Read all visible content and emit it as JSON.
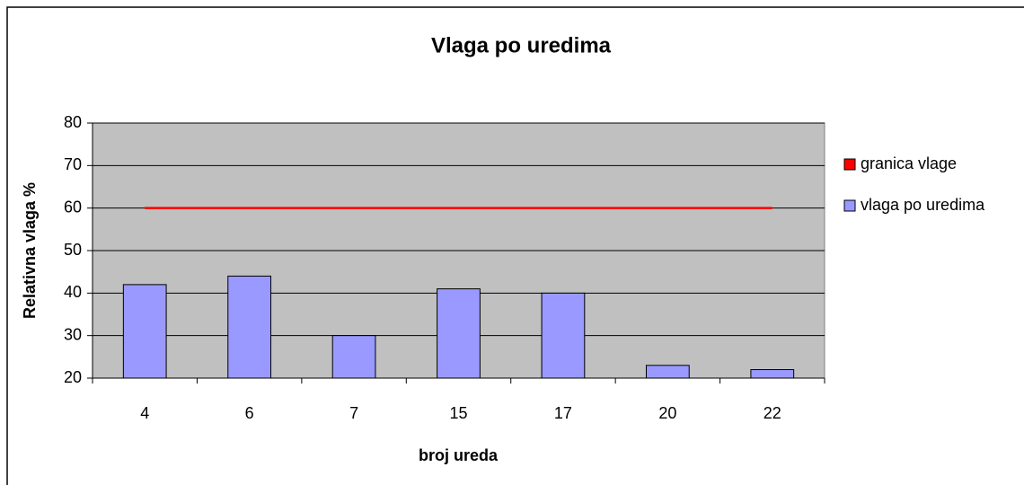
{
  "chart_data": {
    "type": "bar",
    "title": "Vlaga po uredima",
    "x_label": "broj ureda",
    "y_label": "Relativna vlaga %",
    "categories": [
      "4",
      "6",
      "7",
      "15",
      "17",
      "20",
      "22"
    ],
    "series": [
      {
        "name": "granica vlage",
        "color": "#ff0000",
        "type": "line",
        "values": [
          60,
          60,
          60,
          60,
          60,
          60,
          60
        ]
      },
      {
        "name": "vlaga po uredima",
        "color": "#9999ff",
        "type": "bar",
        "values": [
          42,
          44,
          30,
          41,
          40,
          23,
          22
        ]
      }
    ],
    "ylim": [
      20,
      80
    ],
    "yticks": [
      20,
      30,
      40,
      50,
      60,
      70,
      80
    ],
    "grid": true,
    "legend": "right"
  }
}
